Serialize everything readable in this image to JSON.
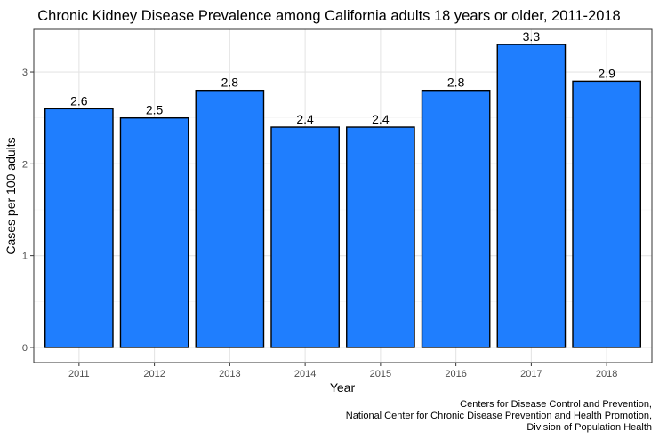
{
  "chart_data": {
    "type": "bar",
    "title": "Chronic Kidney Disease Prevalence among California adults 18 years or older, 2011-2018",
    "xlabel": "Year",
    "ylabel": "Cases per 100 adults",
    "categories": [
      "2011",
      "2012",
      "2013",
      "2014",
      "2015",
      "2016",
      "2017",
      "2018"
    ],
    "values": [
      2.6,
      2.5,
      2.8,
      2.4,
      2.4,
      2.8,
      3.3,
      2.9
    ],
    "data_labels": [
      "2.6",
      "2.5",
      "2.8",
      "2.4",
      "2.4",
      "2.8",
      "3.3",
      "2.9"
    ],
    "yticks": [
      0,
      1,
      2,
      3
    ],
    "ytick_labels": [
      "0",
      "1",
      "2",
      "3"
    ],
    "ylim": [
      -0.165,
      3.465
    ],
    "grid": true,
    "legend": "none",
    "bar_color": "#1f7efe",
    "caption_lines": [
      "Centers for Disease Control and Prevention,",
      "National Center for Chronic Disease Prevention and Health Promotion,",
      "Division of Population Health"
    ]
  }
}
